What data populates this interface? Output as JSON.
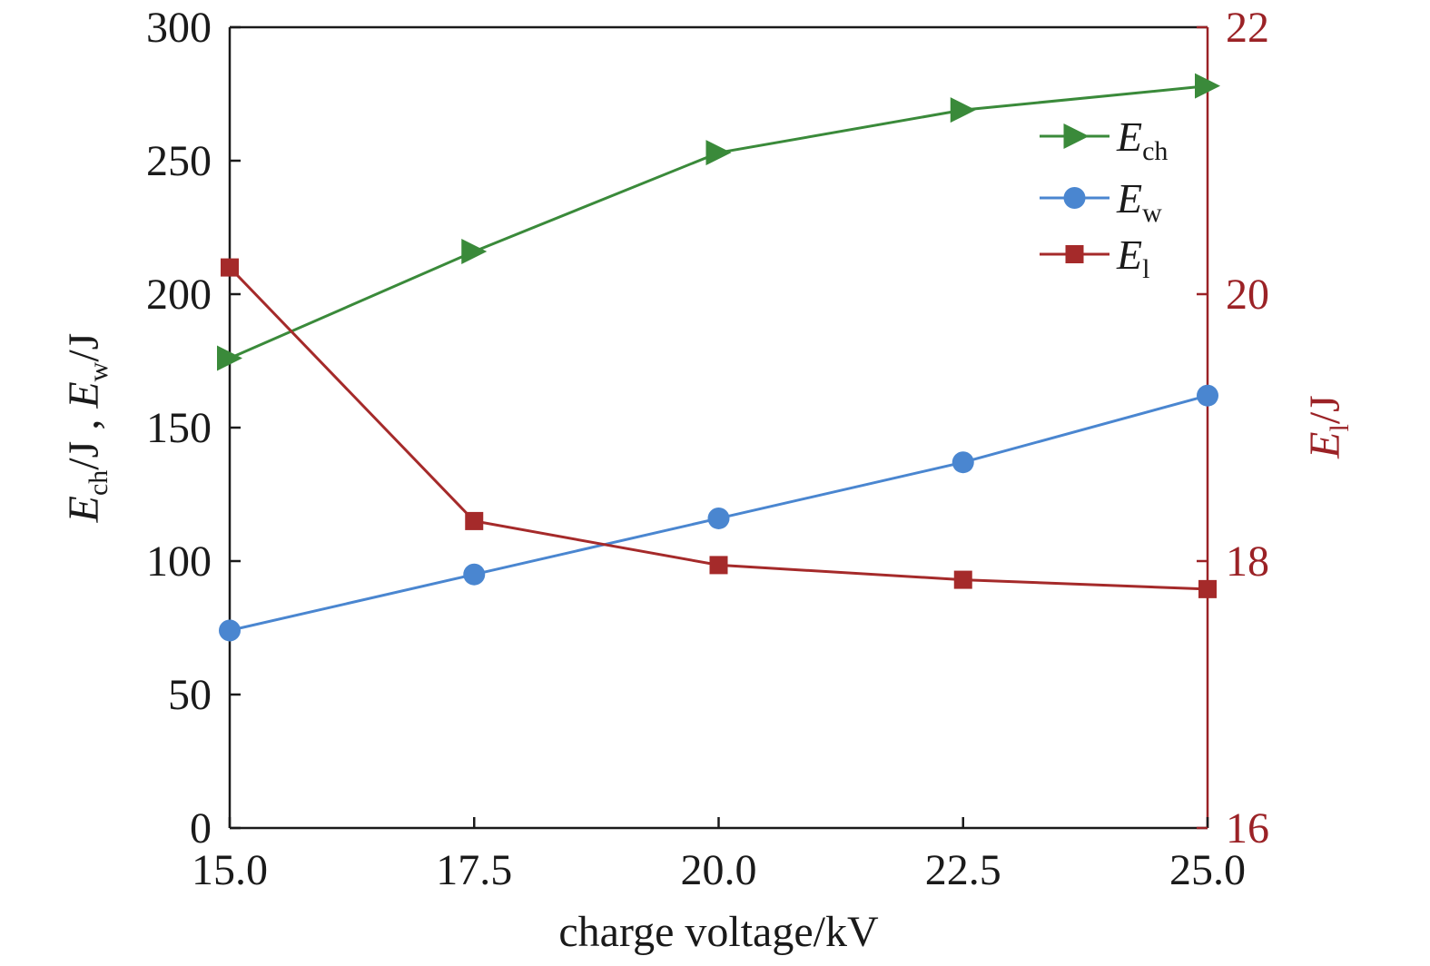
{
  "chart_data": {
    "type": "line",
    "x": [
      15.0,
      17.5,
      20.0,
      22.5,
      25.0
    ],
    "x_tick_labels": [
      "15.0",
      "17.5",
      "20.0",
      "22.5",
      "25.0"
    ],
    "xlim": [
      15.0,
      25.0
    ],
    "xlabel": "charge voltage/kV",
    "y_left": {
      "ylim": [
        0,
        300
      ],
      "ticks": [
        0,
        50,
        100,
        150,
        200,
        250,
        300
      ],
      "tick_labels": [
        "0",
        "50",
        "100",
        "150",
        "200",
        "250",
        "300"
      ],
      "label": {
        "E1": "E",
        "sub1": "ch",
        "mid": "/J , ",
        "E2": "E",
        "sub2": "w",
        "end": "/J"
      }
    },
    "y_right": {
      "ylim": [
        16,
        22
      ],
      "ticks": [
        16,
        18,
        20,
        22
      ],
      "tick_labels": [
        "16",
        "18",
        "20",
        "22"
      ],
      "label": {
        "E": "E",
        "sub": "l",
        "end": "/J"
      },
      "color": "#9b2226"
    },
    "series": [
      {
        "key": "ch",
        "name": "E",
        "sub": "ch",
        "axis": "left",
        "marker": "triangle-right",
        "color": "#3a8a3a",
        "values": [
          176,
          216,
          253,
          269,
          278
        ]
      },
      {
        "key": "w",
        "name": "E",
        "sub": "w",
        "axis": "left",
        "marker": "circle",
        "color": "#4a86d0",
        "values": [
          74,
          95,
          116,
          137,
          162
        ]
      },
      {
        "key": "l",
        "name": "E",
        "sub": "l",
        "axis": "right",
        "marker": "square",
        "color": "#a52a2a",
        "values": [
          20.2,
          18.3,
          17.97,
          17.86,
          17.79
        ]
      }
    ],
    "legend_position": "top-right",
    "grid": false
  }
}
